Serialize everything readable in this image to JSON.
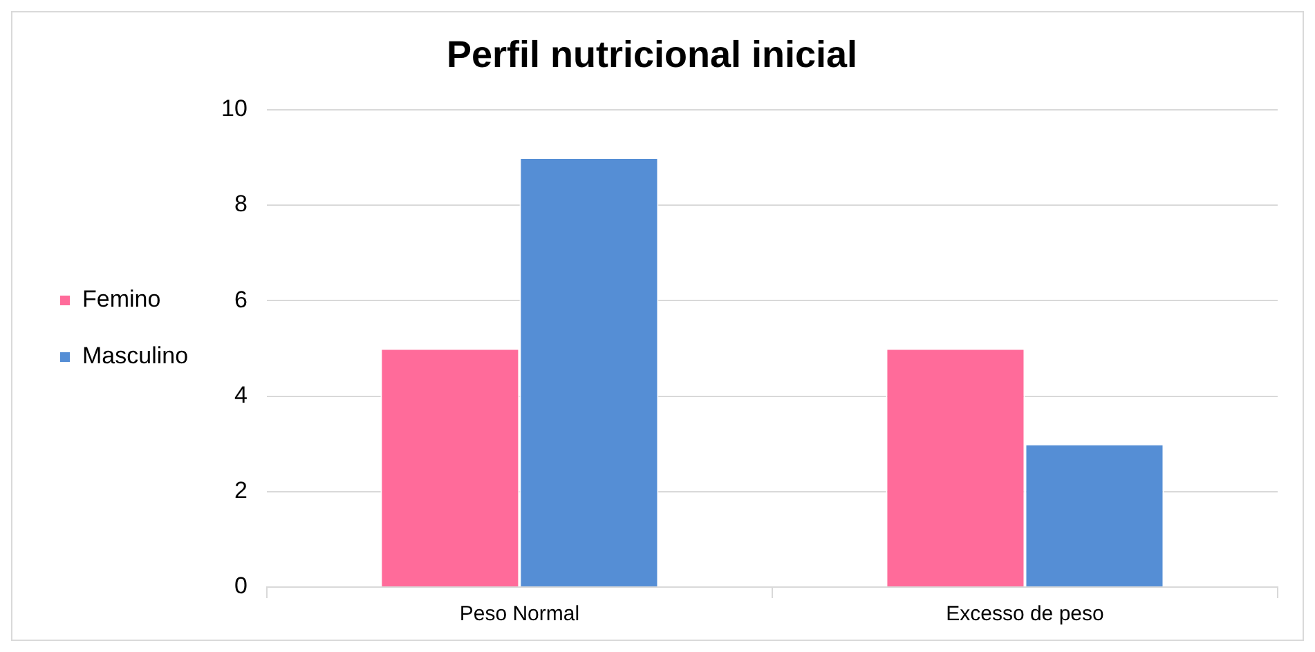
{
  "chart_data": {
    "type": "bar",
    "title": "Perfil nutricional inicial",
    "categories": [
      "Peso Normal",
      "Excesso de peso"
    ],
    "series": [
      {
        "name": "Femino",
        "color": "#ff6b9a",
        "values": [
          5,
          5
        ]
      },
      {
        "name": "Masculino",
        "color": "#558ed5",
        "values": [
          9,
          3
        ]
      }
    ],
    "ylim": [
      0,
      10
    ],
    "yticks": [
      0,
      2,
      4,
      6,
      8,
      10
    ],
    "grid": "y",
    "legend": "left"
  }
}
